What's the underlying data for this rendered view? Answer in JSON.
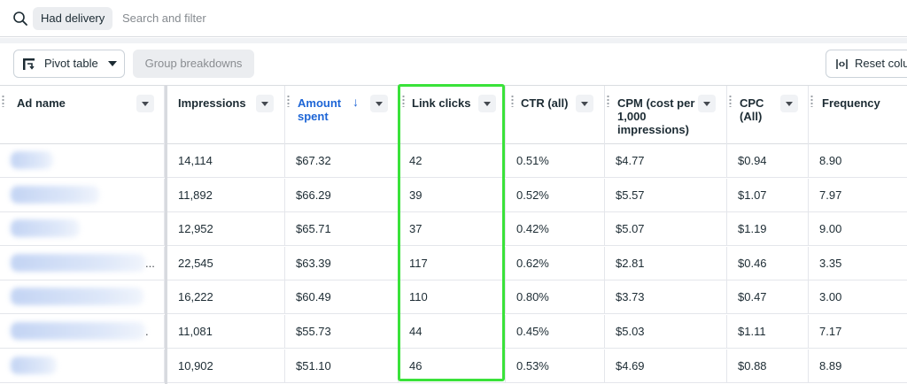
{
  "filter_bar": {
    "chip_label": "Had delivery",
    "placeholder": "Search and filter"
  },
  "toolbar": {
    "pivot_label": "Pivot table",
    "group_label": "Group breakdowns",
    "reset_label": "Reset colu"
  },
  "columns": [
    {
      "label": "Ad name"
    },
    {
      "label": "Impressions"
    },
    {
      "label": "Amount spent",
      "sorted": "descending"
    },
    {
      "label": "Link clicks"
    },
    {
      "label": "CTR (all)"
    },
    {
      "label": "CPM (cost per 1,000 impressions)"
    },
    {
      "label": "CPC (All)"
    },
    {
      "label": "Frequency"
    }
  ],
  "rows": [
    {
      "impressions": "14,114",
      "amount": "$67.32",
      "clicks": "42",
      "ctr": "0.51%",
      "cpm": "$4.77",
      "cpc": "$0.94",
      "freq": "8.90",
      "ellipsis": ""
    },
    {
      "impressions": "11,892",
      "amount": "$66.29",
      "clicks": "39",
      "ctr": "0.52%",
      "cpm": "$5.57",
      "cpc": "$1.07",
      "freq": "7.97",
      "ellipsis": ""
    },
    {
      "impressions": "12,952",
      "amount": "$65.71",
      "clicks": "37",
      "ctr": "0.42%",
      "cpm": "$5.07",
      "cpc": "$1.19",
      "freq": "9.00",
      "ellipsis": ""
    },
    {
      "impressions": "22,545",
      "amount": "$63.39",
      "clicks": "117",
      "ctr": "0.62%",
      "cpm": "$2.81",
      "cpc": "$0.46",
      "freq": "3.35",
      "ellipsis": "..."
    },
    {
      "impressions": "16,222",
      "amount": "$60.49",
      "clicks": "110",
      "ctr": "0.80%",
      "cpm": "$3.73",
      "cpc": "$0.47",
      "freq": "3.00",
      "ellipsis": ""
    },
    {
      "impressions": "11,081",
      "amount": "$55.73",
      "clicks": "44",
      "ctr": "0.45%",
      "cpm": "$5.03",
      "cpc": "$1.11",
      "freq": "7.17",
      "ellipsis": "."
    },
    {
      "impressions": "10,902",
      "amount": "$51.10",
      "clicks": "46",
      "ctr": "0.53%",
      "cpm": "$4.69",
      "cpc": "$0.88",
      "freq": "8.89",
      "ellipsis": ""
    }
  ],
  "colors": {
    "sorted_header": "#1d65d6",
    "highlight_box": "#3ae23a"
  }
}
